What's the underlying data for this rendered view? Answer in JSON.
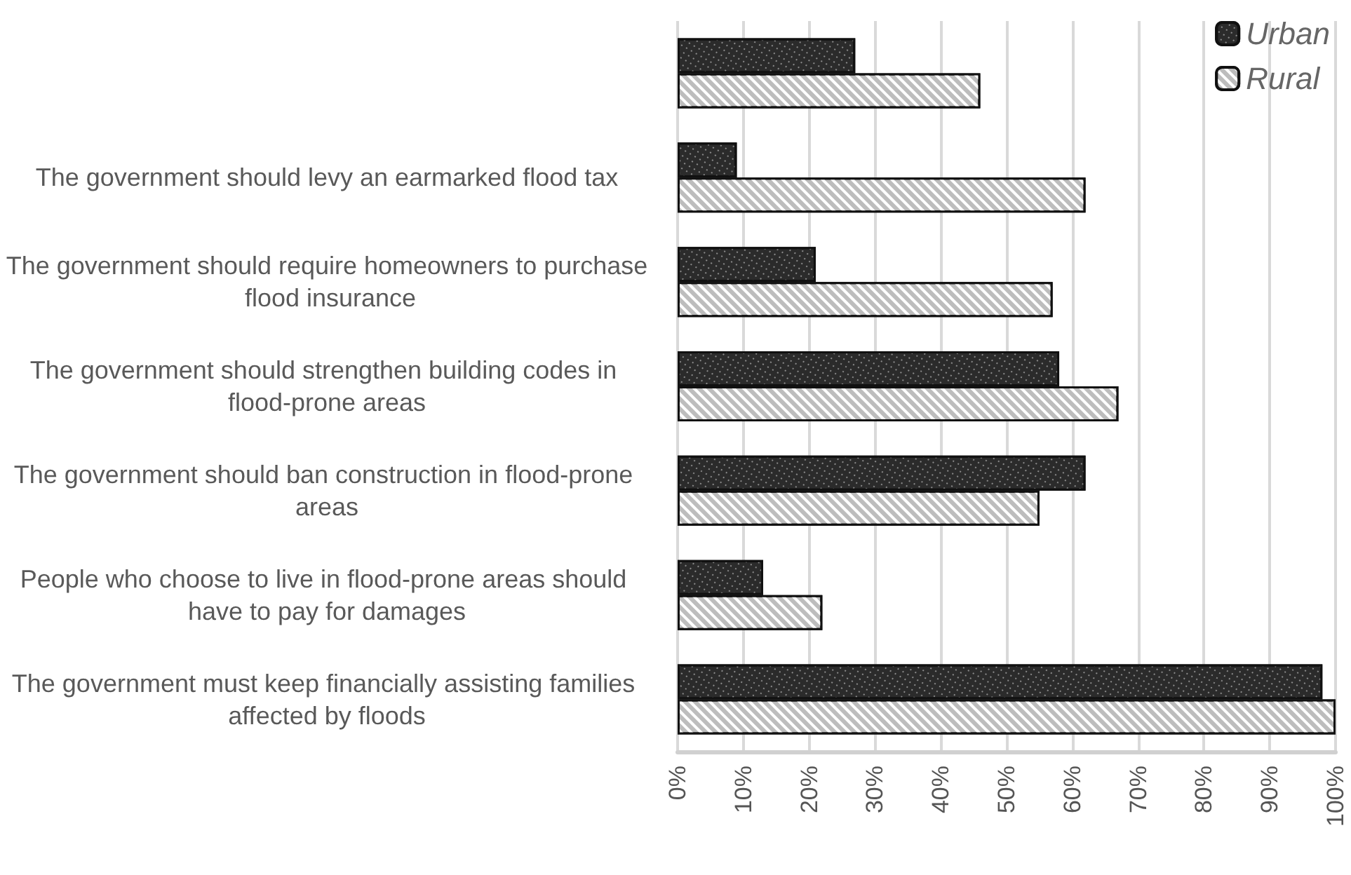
{
  "chart_data": {
    "type": "bar",
    "orientation": "horizontal",
    "categories": [
      null,
      "The government should levy an earmarked flood tax",
      "The government should require homeowners to purchase flood insurance",
      "The government should strengthen building codes in flood-prone areas",
      "The government should ban construction in flood-prone areas",
      "People who choose to live in flood-prone areas should have to pay for damages",
      "The government must keep financially assisting families affected by floods"
    ],
    "series": [
      {
        "name": "Urban",
        "color": "#2b2b2b",
        "values": [
          27,
          9,
          21,
          58,
          62,
          13,
          98
        ]
      },
      {
        "name": "Rural",
        "color": "#bdbdbd",
        "values": [
          46,
          62,
          57,
          67,
          55,
          22,
          100
        ]
      }
    ],
    "xlim": [
      0,
      100
    ],
    "xticks": [
      {
        "value": 0,
        "label": "0%"
      },
      {
        "value": 10,
        "label": "10%"
      },
      {
        "value": 20,
        "label": "20%"
      },
      {
        "value": 30,
        "label": "30%"
      },
      {
        "value": 40,
        "label": "40%"
      },
      {
        "value": 50,
        "label": "50%"
      },
      {
        "value": 60,
        "label": "60%"
      },
      {
        "value": 70,
        "label": "70%"
      },
      {
        "value": 80,
        "label": "80%"
      },
      {
        "value": 90,
        "label": "90%"
      },
      {
        "value": 100,
        "label": "100%"
      }
    ],
    "grid": "x",
    "legend": "top right"
  }
}
